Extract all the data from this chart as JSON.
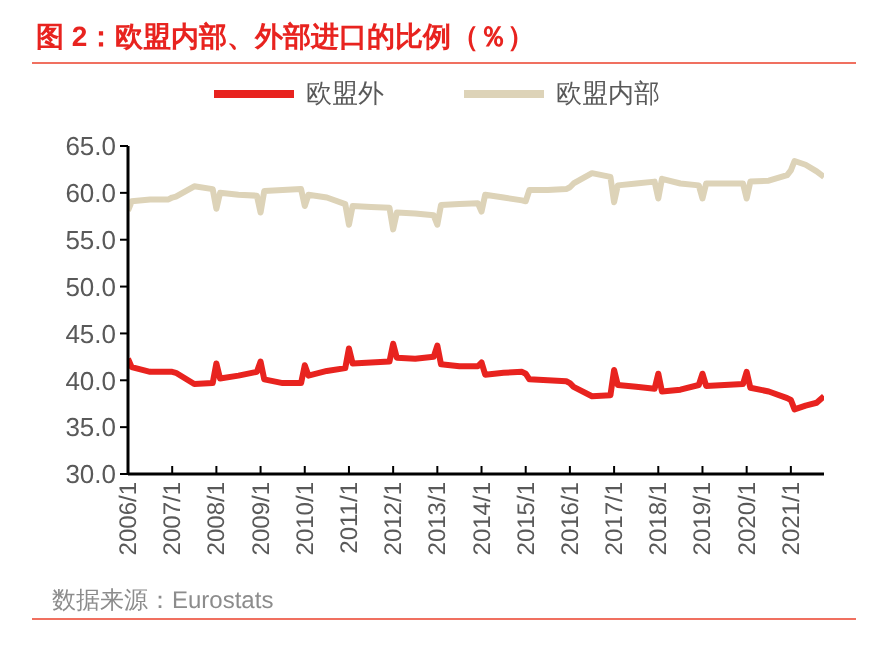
{
  "chart_data": {
    "type": "line",
    "title": "图 2：欧盟内部、外部进口的比例（％）",
    "annotations": [
      "数据来源：Eurostats"
    ],
    "x": [
      "2006-01",
      "2006-02",
      "2006-07",
      "2006-12",
      "2007-01",
      "2007-02",
      "2007-07",
      "2007-12",
      "2008-01",
      "2008-02",
      "2008-07",
      "2008-12",
      "2009-01",
      "2009-02",
      "2009-07",
      "2009-12",
      "2010-01",
      "2010-02",
      "2010-07",
      "2010-12",
      "2011-01",
      "2011-02",
      "2011-07",
      "2011-12",
      "2012-01",
      "2012-02",
      "2012-07",
      "2012-12",
      "2013-01",
      "2013-02",
      "2013-07",
      "2013-12",
      "2014-01",
      "2014-02",
      "2014-07",
      "2014-12",
      "2015-01",
      "2015-02",
      "2015-07",
      "2015-12",
      "2016-01",
      "2016-02",
      "2016-07",
      "2016-12",
      "2017-01",
      "2017-02",
      "2017-07",
      "2017-12",
      "2018-01",
      "2018-02",
      "2018-07",
      "2018-12",
      "2019-01",
      "2019-02",
      "2019-07",
      "2019-12",
      "2020-01",
      "2020-02",
      "2020-07",
      "2020-12",
      "2021-01",
      "2021-02",
      "2021-05",
      "2021-08",
      "2021-10"
    ],
    "series": [
      {
        "name": "欧盟外",
        "color": "#e8231f",
        "values": [
          42.3,
          41.4,
          40.9,
          40.9,
          40.9,
          40.8,
          39.6,
          39.7,
          41.8,
          40.2,
          40.5,
          40.9,
          42.0,
          40.1,
          39.7,
          39.7,
          41.6,
          40.5,
          41.0,
          41.3,
          43.4,
          41.8,
          41.9,
          42.0,
          43.9,
          42.4,
          42.3,
          42.5,
          43.7,
          41.7,
          41.5,
          41.5,
          41.9,
          40.6,
          40.8,
          40.9,
          40.7,
          40.1,
          40.0,
          39.9,
          39.7,
          39.3,
          38.3,
          38.4,
          41.1,
          39.5,
          39.3,
          39.1,
          40.7,
          38.8,
          39.0,
          39.5,
          40.7,
          39.4,
          39.5,
          39.6,
          40.9,
          39.2,
          38.8,
          38.1,
          37.9,
          36.9,
          37.3,
          37.6,
          38.3
        ]
      },
      {
        "name": "欧盟内部",
        "color": "#ddd3b8",
        "values": [
          58.1,
          59.1,
          59.3,
          59.3,
          59.5,
          59.6,
          60.7,
          60.4,
          58.3,
          60.0,
          59.8,
          59.7,
          57.9,
          60.2,
          60.3,
          60.4,
          58.6,
          59.8,
          59.5,
          58.8,
          56.6,
          58.6,
          58.5,
          58.4,
          56.1,
          57.9,
          57.8,
          57.6,
          56.6,
          58.7,
          58.8,
          58.9,
          58.0,
          59.8,
          59.5,
          59.2,
          59.1,
          60.3,
          60.3,
          60.4,
          60.6,
          61.0,
          62.1,
          61.7,
          59.0,
          60.8,
          61.0,
          61.2,
          59.4,
          61.5,
          61.0,
          60.8,
          59.4,
          61.0,
          61.0,
          61.0,
          59.4,
          61.2,
          61.3,
          61.9,
          62.4,
          63.4,
          63.0,
          62.3,
          61.7
        ]
      }
    ],
    "xlim": [
      "2006-01",
      "2021-10"
    ],
    "xticks": [
      {
        "value": "2006-01",
        "label": "2006/1"
      },
      {
        "value": "2007-01",
        "label": "2007/1"
      },
      {
        "value": "2008-01",
        "label": "2008/1"
      },
      {
        "value": "2009-01",
        "label": "2009/1"
      },
      {
        "value": "2010-01",
        "label": "2010/1"
      },
      {
        "value": "2011-01",
        "label": "2011/1"
      },
      {
        "value": "2012-01",
        "label": "2012/1"
      },
      {
        "value": "2013-01",
        "label": "2013/1"
      },
      {
        "value": "2014-01",
        "label": "2014/1"
      },
      {
        "value": "2015-01",
        "label": "2015/1"
      },
      {
        "value": "2016-01",
        "label": "2016/1"
      },
      {
        "value": "2017-01",
        "label": "2017/1"
      },
      {
        "value": "2018-01",
        "label": "2018/1"
      },
      {
        "value": "2019-01",
        "label": "2019/1"
      },
      {
        "value": "2020-01",
        "label": "2020/1"
      },
      {
        "value": "2021-01",
        "label": "2021/1"
      }
    ],
    "ylim": [
      30,
      65
    ],
    "yticks": [
      {
        "value": 30,
        "label": "30.0"
      },
      {
        "value": 35,
        "label": "35.0"
      },
      {
        "value": 40,
        "label": "40.0"
      },
      {
        "value": 45,
        "label": "45.0"
      },
      {
        "value": 50,
        "label": "50.0"
      },
      {
        "value": 55,
        "label": "55.0"
      },
      {
        "value": 60,
        "label": "60.0"
      },
      {
        "value": 65,
        "label": "65.0"
      }
    ],
    "grid": false,
    "legend": "top",
    "marker": "none",
    "line_style": "solid"
  }
}
